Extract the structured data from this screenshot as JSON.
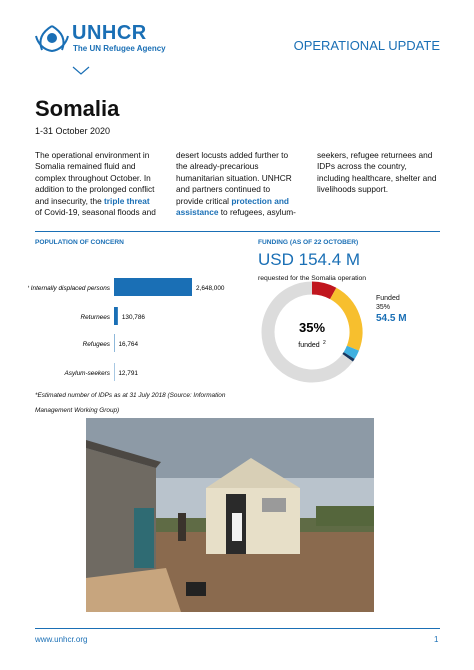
{
  "header": {
    "logo": "UNHCR",
    "logo_tagline": "The UN Refugee Agency",
    "label": "OPERATIONAL UPDATE"
  },
  "title": "Somalia",
  "date": "1-31 October 2020",
  "body": [
    {
      "text": "The operational environment in Somalia remained fluid and complex throughout October. In addition to the prolonged conflict and insecurity, the "
    },
    {
      "text": "triple threat",
      "bold": true
    },
    {
      "text": " of Covid-19, seasonal floods and desert locusts added further to the already-precarious humanitarian situation. UNHCR and partners continued to provide critical "
    },
    {
      "text": "protection and assistance",
      "bold": true
    },
    {
      "text": " to refugees, asylum-seekers, refugee returnees and IDPs across the country, including healthcare, shelter and livelihoods support."
    }
  ],
  "chart_data": [
    {
      "type": "bar",
      "orientation": "horizontal",
      "title": "POPULATION OF CONCERN",
      "categories": [
        "* Internally displaced persons",
        "Returnees",
        "Refugees",
        "Asylum-seekers"
      ],
      "values": [
        2648000,
        130786,
        16764,
        12791
      ],
      "value_labels": [
        "2,648,000",
        "130,786",
        "16,764",
        "12,791"
      ],
      "color": "#1a6fb5",
      "note": "*Estimated number of IDPs as at 31 July 2018 (Source: Information Management Working Group)"
    },
    {
      "type": "pie",
      "title": "FUNDING (AS OF 22 OCTOBER)",
      "total": "USD 154.4 M",
      "subtitle": "requested for the Somalia operation",
      "values": [
        8,
        23,
        3,
        1,
        65
      ],
      "colors": [
        "#c0161e",
        "#f7bf2e",
        "#3fb0e0",
        "#18375f",
        "#dcdcdc"
      ],
      "center_label": "35%",
      "center_text": "funded",
      "center_footnote": "2",
      "annotation": {
        "label": "Funded",
        "percent": "35%",
        "amount": "54.5 M"
      }
    }
  ],
  "footer": {
    "url": "www.unhcr.org",
    "page": "1"
  }
}
